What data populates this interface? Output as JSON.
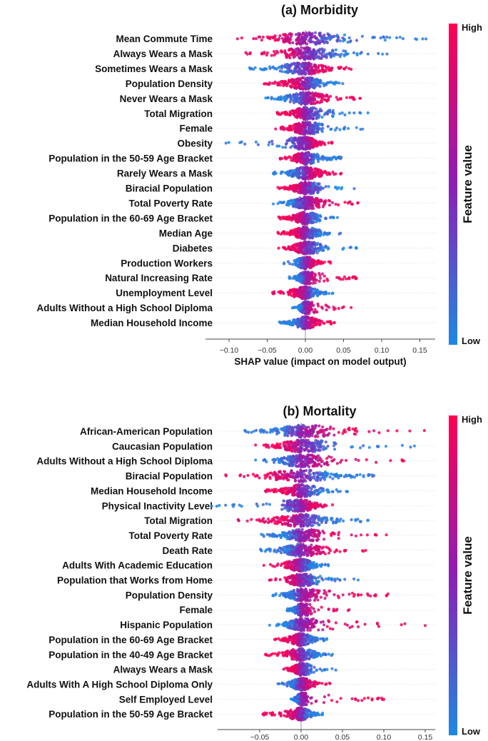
{
  "colors": {
    "high": "#FF0052",
    "low": "#1E88E5",
    "mid": "#8B1FB5"
  },
  "chart_data": [
    {
      "type": "scatter",
      "subtype": "shap-beeswarm",
      "title": "(a) Morbidity",
      "xlabel": "SHAP value (impact on model output)",
      "xlim": [
        -0.13,
        0.17
      ],
      "xticks": [
        -0.1,
        -0.05,
        0.0,
        0.05,
        0.1,
        0.15
      ],
      "xtick_labels": [
        "−0.10",
        "−0.05",
        "0.00",
        "0.05",
        "0.10",
        "0.15"
      ],
      "colorbar": {
        "title": "Feature value",
        "high": "High",
        "low": "Low"
      },
      "features": [
        {
          "name": "Mean Commute Time",
          "min": -0.089,
          "max": 0.158,
          "high_side": "negative"
        },
        {
          "name": "Always Wears a Mask",
          "min": -0.078,
          "max": 0.107,
          "high_side": "negative"
        },
        {
          "name": "Sometimes Wears a Mask",
          "min": -0.073,
          "max": 0.06,
          "high_side": "positive"
        },
        {
          "name": "Population Density",
          "min": -0.054,
          "max": 0.049,
          "high_side": "negative"
        },
        {
          "name": "Never Wears a Mask",
          "min": -0.052,
          "max": 0.072,
          "high_side": "positive"
        },
        {
          "name": "Total Migration",
          "min": -0.037,
          "max": 0.082,
          "high_side": "negative"
        },
        {
          "name": "Female",
          "min": -0.039,
          "max": 0.075,
          "high_side": "negative"
        },
        {
          "name": "Obesity",
          "min": -0.104,
          "max": 0.035,
          "high_side": "positive"
        },
        {
          "name": "Population in the 50-59 Age Bracket",
          "min": -0.033,
          "max": 0.047,
          "high_side": "negative"
        },
        {
          "name": "Rarely Wears a Mask",
          "min": -0.042,
          "max": 0.047,
          "high_side": "positive"
        },
        {
          "name": "Biracial Population",
          "min": -0.036,
          "max": 0.064,
          "high_side": "negative"
        },
        {
          "name": "Total Poverty Rate",
          "min": -0.042,
          "max": 0.069,
          "high_side": "positive"
        },
        {
          "name": "Population in the 60-69 Age Bracket",
          "min": -0.035,
          "max": 0.042,
          "high_side": "negative"
        },
        {
          "name": "Median Age",
          "min": -0.036,
          "max": 0.046,
          "high_side": "negative"
        },
        {
          "name": "Diabetes",
          "min": -0.035,
          "max": 0.067,
          "high_side": "negative"
        },
        {
          "name": "Production Workers",
          "min": -0.028,
          "max": 0.033,
          "high_side": "positive"
        },
        {
          "name": "Natural Increasing Rate",
          "min": -0.021,
          "max": 0.067,
          "high_side": "positive"
        },
        {
          "name": "Unemployment Level",
          "min": -0.043,
          "max": 0.036,
          "high_side": "negative"
        },
        {
          "name": "Adults Without a High School Diploma",
          "min": -0.017,
          "max": 0.06,
          "high_side": "positive"
        },
        {
          "name": "Median Household Income",
          "min": -0.034,
          "max": 0.038,
          "high_side": "positive"
        }
      ]
    },
    {
      "type": "scatter",
      "subtype": "shap-beeswarm",
      "title": "(b) Mortality",
      "xlabel": "",
      "xlim": [
        -0.1,
        0.165
      ],
      "xticks": [
        -0.05,
        0.0,
        0.05,
        0.1,
        0.15
      ],
      "xtick_labels": [
        "−0.05",
        "0.00",
        "0.05",
        "0.10",
        "0.15"
      ],
      "colorbar": {
        "title": "Feature value",
        "high": "High",
        "low": "Low"
      },
      "features": [
        {
          "name": "African-American Population",
          "min": -0.068,
          "max": 0.149,
          "high_side": "positive"
        },
        {
          "name": "Caucasian Population",
          "min": -0.055,
          "max": 0.137,
          "high_side": "negative"
        },
        {
          "name": "Adults Without a High School Diploma",
          "min": -0.055,
          "max": 0.124,
          "high_side": "positive"
        },
        {
          "name": "Biracial Population",
          "min": -0.091,
          "max": 0.088,
          "high_side": "negative"
        },
        {
          "name": "Median Household Income",
          "min": -0.043,
          "max": 0.056,
          "high_side": "negative"
        },
        {
          "name": "Physical Inactivity Level",
          "min": -0.108,
          "max": 0.038,
          "high_side": "positive"
        },
        {
          "name": "Total Migration",
          "min": -0.076,
          "max": 0.081,
          "high_side": "negative"
        },
        {
          "name": "Total Poverty Rate",
          "min": -0.048,
          "max": 0.103,
          "high_side": "positive"
        },
        {
          "name": "Death Rate",
          "min": -0.049,
          "max": 0.078,
          "high_side": "positive"
        },
        {
          "name": "Adults With Academic Education",
          "min": -0.045,
          "max": 0.033,
          "high_side": "negative"
        },
        {
          "name": "Population that Works from Home",
          "min": -0.038,
          "max": 0.069,
          "high_side": "negative"
        },
        {
          "name": "Population Density",
          "min": -0.034,
          "max": 0.105,
          "high_side": "positive"
        },
        {
          "name": "Female",
          "min": -0.017,
          "max": 0.058,
          "high_side": "positive"
        },
        {
          "name": "Hispanic Population",
          "min": -0.038,
          "max": 0.15,
          "high_side": "positive"
        },
        {
          "name": "Population in the 60-69 Age Bracket",
          "min": -0.032,
          "max": 0.031,
          "high_side": "negative"
        },
        {
          "name": "Population in the 40-49 Age Bracket",
          "min": -0.043,
          "max": 0.038,
          "high_side": "negative"
        },
        {
          "name": "Always Wears a Mask",
          "min": -0.021,
          "max": 0.042,
          "high_side": "negative"
        },
        {
          "name": "Adults With A High School Diploma Only",
          "min": -0.028,
          "max": 0.035,
          "high_side": "positive"
        },
        {
          "name": "Self Employed Level",
          "min": -0.012,
          "max": 0.1,
          "high_side": "positive"
        },
        {
          "name": "Population in the 50-59 Age Bracket",
          "min": -0.046,
          "max": 0.026,
          "high_side": "negative"
        }
      ]
    }
  ]
}
